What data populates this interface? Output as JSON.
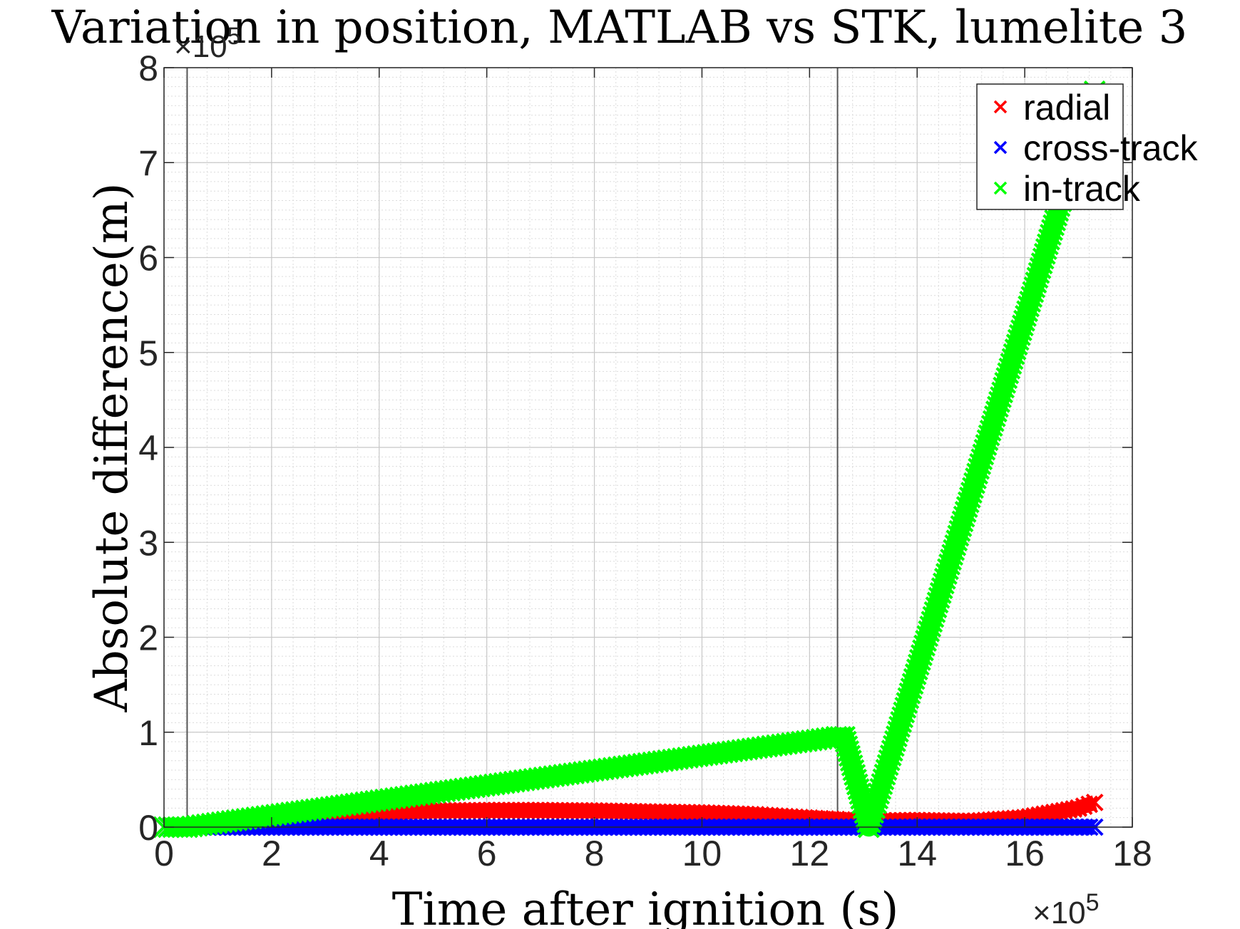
{
  "chart_data": {
    "type": "scatter",
    "title": "Variation in position, MATLAB vs STK, lumelite 3",
    "xlabel": "Time after ignition (s)",
    "ylabel": "Absolute difference(m)",
    "x_exponent": "×10",
    "x_exponent_power": "5",
    "y_exponent": "×10",
    "y_exponent_power": "5",
    "x_scale": 100000,
    "y_scale": 100000,
    "xlim": [
      0,
      1800000
    ],
    "ylim": [
      0,
      800000
    ],
    "xticks": [
      0,
      200000,
      400000,
      600000,
      800000,
      1000000,
      1200000,
      1400000,
      1600000,
      1800000
    ],
    "xtick_labels": [
      "0",
      "2",
      "4",
      "6",
      "8",
      "10",
      "12",
      "14",
      "16",
      "18"
    ],
    "yticks": [
      0,
      100000,
      200000,
      300000,
      400000,
      500000,
      600000,
      700000,
      800000
    ],
    "ytick_labels": [
      "0",
      "1",
      "2",
      "3",
      "4",
      "5",
      "6",
      "7",
      "8"
    ],
    "grid": true,
    "minor_grid": true,
    "legend_position": "top-right",
    "vertical_lines_x": [
      43000,
      1252000
    ],
    "series": [
      {
        "name": "radial",
        "color": "#ff0000",
        "marker": "x",
        "x": [
          0,
          100000,
          200000,
          300000,
          400000,
          500000,
          600000,
          700000,
          800000,
          900000,
          1000000,
          1100000,
          1200000,
          1250000,
          1300000,
          1400000,
          1500000,
          1600000,
          1700000,
          1730000
        ],
        "y": [
          0,
          2000,
          7000,
          12000,
          15000,
          17000,
          17500,
          17500,
          17000,
          16000,
          15000,
          13000,
          9500,
          8000,
          6500,
          7000,
          6000,
          10000,
          20000,
          26000
        ]
      },
      {
        "name": "cross-track",
        "color": "#0000ff",
        "marker": "x",
        "x": [
          0,
          200000,
          400000,
          600000,
          800000,
          1000000,
          1200000,
          1400000,
          1600000,
          1730000
        ],
        "y": [
          0,
          0,
          0,
          0,
          0,
          0,
          0,
          0,
          0,
          0
        ]
      },
      {
        "name": "in-track",
        "color": "#00ff00",
        "marker": "x",
        "x": [
          0,
          43000,
          1250000,
          1265000,
          1310000,
          1730000
        ],
        "y": [
          0,
          0,
          95000,
          95000,
          0,
          775000
        ]
      }
    ]
  }
}
